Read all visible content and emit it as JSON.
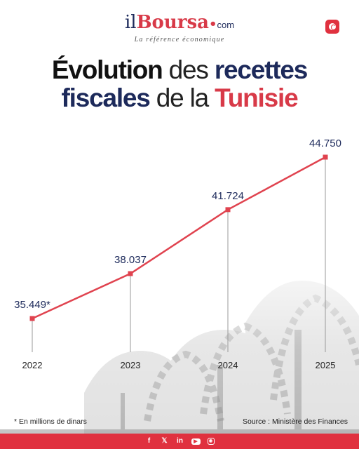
{
  "brand": {
    "logo_il": "il",
    "logo_boursa": "Boursa",
    "logo_dot": "•",
    "logo_com": "com",
    "tagline": "La référence économique"
  },
  "title": {
    "part1": "Évolution",
    "part2": " des ",
    "part3": "recettes",
    "part4": "fiscales",
    "part5": " de la ",
    "part6": "Tunisie"
  },
  "chart_data": {
    "type": "line",
    "title": "Évolution des recettes fiscales de la Tunisie",
    "categories": [
      "2022",
      "2023",
      "2024",
      "2025"
    ],
    "values": [
      35449,
      38037,
      41724,
      44750
    ],
    "labels": [
      "35.449*",
      "38.037",
      "41.724",
      "44.750"
    ],
    "ylim": [
      33000,
      46000
    ],
    "grid": false,
    "colors": {
      "line": "#e0434f",
      "label": "#1d2a5b"
    }
  },
  "note": "*  En millions de dinars",
  "source": {
    "prefix": "Source : ",
    "name": "Ministère des Finances"
  },
  "footer": {
    "icons": [
      "facebook-icon",
      "x-icon",
      "linkedin-icon",
      "youtube-icon",
      "instagram-icon"
    ],
    "glyphs": [
      "f",
      "𝕏",
      "in",
      "▶",
      "◉"
    ]
  },
  "colors": {
    "accent": "#e0313f",
    "navy": "#1d2a5b"
  }
}
